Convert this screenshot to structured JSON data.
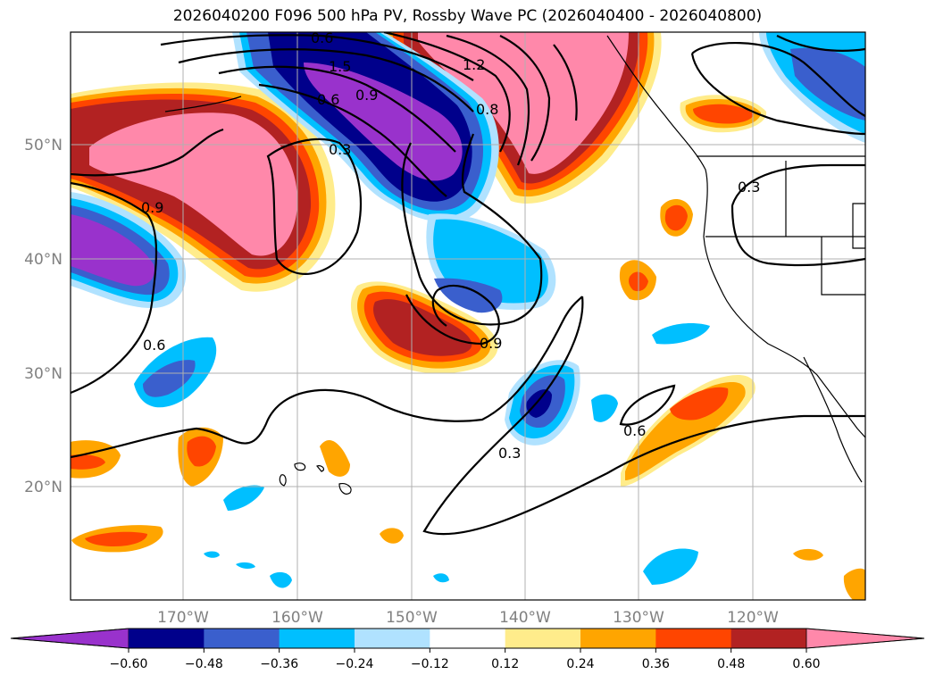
{
  "title": "2026040200 F096 500 hPa PV, Rossby Wave PC (2026040400 - 2026040800)",
  "axes": {
    "lat_labels": [
      "50°N",
      "40°N",
      "30°N",
      "20°N"
    ],
    "lon_labels": [
      "170°W",
      "160°W",
      "150°W",
      "140°W",
      "130°W",
      "120°W"
    ]
  },
  "contour_labels": [
    "0.6",
    "1.5",
    "0.9",
    "1.2",
    "0.8",
    "0.3",
    "0.6",
    "0.9",
    "0.3",
    "0.6",
    "0.9",
    "0.3",
    "0.6"
  ],
  "colorbar": {
    "ticks": [
      "−0.60",
      "−0.48",
      "−0.36",
      "−0.24",
      "−0.12",
      "0.12",
      "0.24",
      "0.36",
      "0.48",
      "0.60"
    ],
    "colors": [
      "#9932cc",
      "#00008b",
      "#3a5fcd",
      "#00bfff",
      "#b0e2ff",
      "#ffffff",
      "#ffec8b",
      "#ffa500",
      "#ff4500",
      "#b22222",
      "#ff88aa"
    ]
  }
}
